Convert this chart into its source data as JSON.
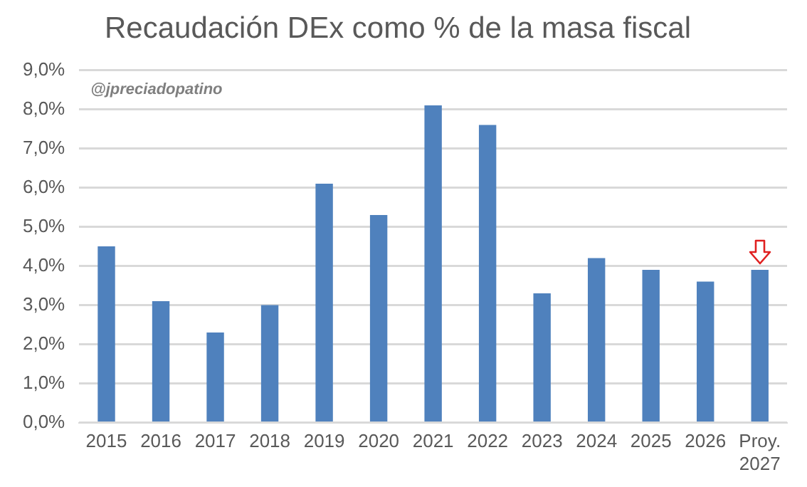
{
  "chart_data": {
    "type": "bar",
    "title": "Recaudación DEx como % de la masa fiscal",
    "categories": [
      "2015",
      "2016",
      "2017",
      "2018",
      "2019",
      "2020",
      "2021",
      "2022",
      "2023",
      "2024",
      "2025",
      "2026",
      "Proy.\n2027"
    ],
    "values": [
      4.5,
      3.1,
      2.3,
      3.0,
      6.1,
      5.3,
      8.1,
      7.6,
      3.3,
      4.2,
      3.9,
      3.6,
      3.9
    ],
    "color": "#4f81bd",
    "ylim": [
      0,
      9
    ],
    "yticks": [
      {
        "value": 0,
        "label": "0,0%"
      },
      {
        "value": 1,
        "label": "1,0%"
      },
      {
        "value": 2,
        "label": "2,0%"
      },
      {
        "value": 3,
        "label": "3,0%"
      },
      {
        "value": 4,
        "label": "4,0%"
      },
      {
        "value": 5,
        "label": "5,0%"
      },
      {
        "value": 6,
        "label": "6,0%"
      },
      {
        "value": 7,
        "label": "7,0%"
      },
      {
        "value": 8,
        "label": "8,0%"
      },
      {
        "value": 9,
        "label": "9,0%"
      }
    ],
    "grid": "y",
    "legend": false,
    "annotations": [
      "@jpreciadopatino"
    ]
  }
}
